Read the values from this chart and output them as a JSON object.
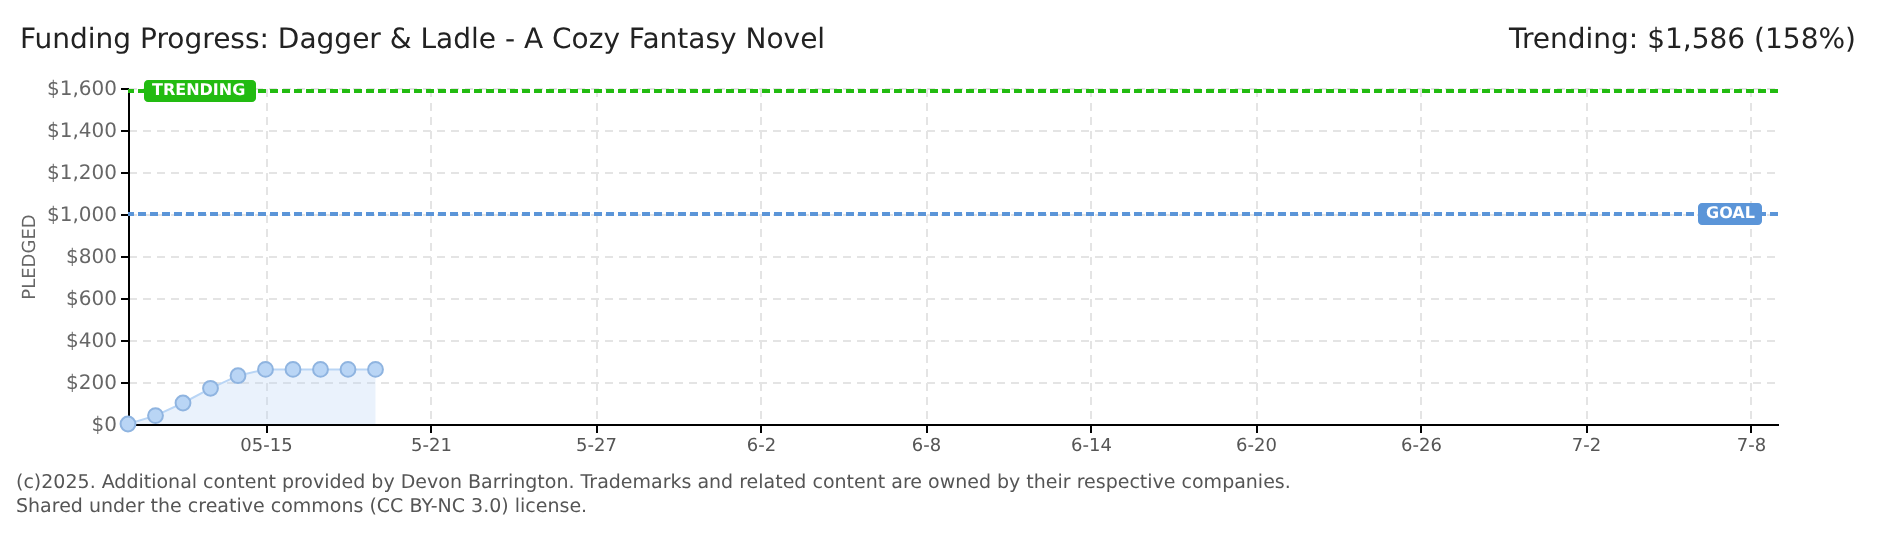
{
  "chart_data": {
    "type": "area",
    "title": "Funding Progress: Dagger & Ladle - A Cozy Fantasy Novel",
    "subtitle": "Trending: $1,586 (158%)",
    "ylabel": "PLEDGED",
    "x": [
      "2025-05-10",
      "2025-05-11",
      "2025-05-12",
      "2025-05-13",
      "2025-05-14",
      "2025-05-15",
      "2025-05-16",
      "2025-05-17",
      "2025-05-18",
      "2025-05-19"
    ],
    "series": [
      {
        "color": "#b9d5f5",
        "values": [
          0,
          40,
          100,
          170,
          230,
          260,
          260,
          260,
          260,
          260
        ]
      }
    ],
    "xlim": [
      "2025-05-10",
      "2025-07-09"
    ],
    "xticks": [
      {
        "value": "2025-05-15",
        "label": "05-15"
      },
      {
        "value": "2025-05-21",
        "label": "5-21"
      },
      {
        "value": "2025-05-27",
        "label": "5-27"
      },
      {
        "value": "2025-06-02",
        "label": "6-2"
      },
      {
        "value": "2025-06-08",
        "label": "6-8"
      },
      {
        "value": "2025-06-14",
        "label": "6-14"
      },
      {
        "value": "2025-06-20",
        "label": "6-20"
      },
      {
        "value": "2025-06-26",
        "label": "6-26"
      },
      {
        "value": "2025-07-02",
        "label": "7-2"
      },
      {
        "value": "2025-07-08",
        "label": "7-8"
      }
    ],
    "ylim": [
      0,
      1600
    ],
    "yticks": [
      {
        "value": 0,
        "label": "$0"
      },
      {
        "value": 200,
        "label": "$200"
      },
      {
        "value": 400,
        "label": "$400"
      },
      {
        "value": 600,
        "label": "$600"
      },
      {
        "value": 800,
        "label": "$800"
      },
      {
        "value": 1000,
        "label": "$1,000"
      },
      {
        "value": 1200,
        "label": "$1,200"
      },
      {
        "value": 1400,
        "label": "$1,400"
      },
      {
        "value": 1600,
        "label": "$1,600"
      }
    ],
    "ref_lines": [
      {
        "axis": "y",
        "value": 1586,
        "label": "TRENDING",
        "color": "#22bb11",
        "line_style": "dashed"
      },
      {
        "axis": "y",
        "value": 1000,
        "label": "GOAL",
        "color": "#5b95d8",
        "line_style": "dashed"
      }
    ],
    "grid": true,
    "marker": "circle",
    "annotations": [
      "(c)2025. Additional content provided by Devon Barrington. Trademarks and related content are owned by their respective companies.",
      "Shared under the creative commons (CC BY-NC 3.0) license."
    ]
  }
}
